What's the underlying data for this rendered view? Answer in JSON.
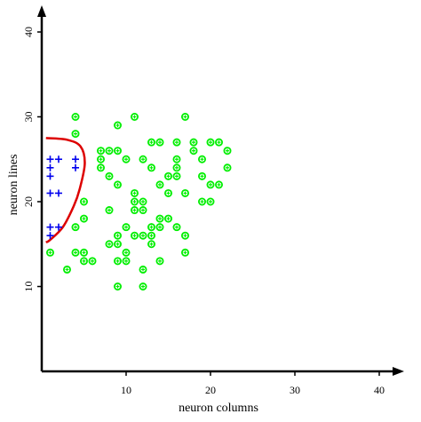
{
  "chart_data": {
    "type": "scatter",
    "title": "",
    "xlabel": "neuron columns",
    "ylabel": "neuron lines",
    "xlim": [
      0,
      42
    ],
    "ylim": [
      0,
      44
    ],
    "xticks": [
      10,
      20,
      30,
      40
    ],
    "yticks": [
      10,
      20,
      30,
      40
    ],
    "grid": false,
    "legend": "none",
    "colors": {
      "class_a": "#00ee00",
      "class_b": "#0000ee",
      "boundary": "#dd0000",
      "axes": "#000000"
    },
    "series": [
      {
        "marker": "circle-plus",
        "color": "#00ee00",
        "points": [
          [
            4,
            30
          ],
          [
            4,
            28
          ],
          [
            9,
            29
          ],
          [
            11,
            30
          ],
          [
            17,
            30
          ],
          [
            7,
            26
          ],
          [
            8,
            26
          ],
          [
            9,
            26
          ],
          [
            12,
            25
          ],
          [
            13,
            27
          ],
          [
            14,
            27
          ],
          [
            16,
            27
          ],
          [
            18,
            27
          ],
          [
            20,
            27
          ],
          [
            21,
            27
          ],
          [
            22,
            26
          ],
          [
            18,
            26
          ],
          [
            7,
            25
          ],
          [
            10,
            25
          ],
          [
            16,
            25
          ],
          [
            19,
            25
          ],
          [
            22,
            24
          ],
          [
            7,
            24
          ],
          [
            13,
            24
          ],
          [
            16,
            24
          ],
          [
            8,
            23
          ],
          [
            15,
            23
          ],
          [
            16,
            23
          ],
          [
            19,
            23
          ],
          [
            14,
            22
          ],
          [
            9,
            22
          ],
          [
            20,
            22
          ],
          [
            21,
            22
          ],
          [
            11,
            21
          ],
          [
            15,
            21
          ],
          [
            17,
            21
          ],
          [
            5,
            20
          ],
          [
            11,
            20
          ],
          [
            12,
            20
          ],
          [
            19,
            20
          ],
          [
            20,
            20
          ],
          [
            8,
            19
          ],
          [
            11,
            19
          ],
          [
            12,
            19
          ],
          [
            5,
            18
          ],
          [
            14,
            18
          ],
          [
            15,
            18
          ],
          [
            4,
            17
          ],
          [
            10,
            17
          ],
          [
            13,
            17
          ],
          [
            14,
            17
          ],
          [
            16,
            17
          ],
          [
            9,
            16
          ],
          [
            11,
            16
          ],
          [
            12,
            16
          ],
          [
            13,
            16
          ],
          [
            17,
            16
          ],
          [
            8,
            15
          ],
          [
            9,
            15
          ],
          [
            13,
            15
          ],
          [
            1,
            14
          ],
          [
            4,
            14
          ],
          [
            5,
            14
          ],
          [
            10,
            14
          ],
          [
            17,
            14
          ],
          [
            5,
            13
          ],
          [
            6,
            13
          ],
          [
            9,
            13
          ],
          [
            10,
            13
          ],
          [
            14,
            13
          ],
          [
            3,
            12
          ],
          [
            12,
            12
          ],
          [
            9,
            10
          ],
          [
            12,
            10
          ]
        ]
      },
      {
        "marker": "plus",
        "color": "#0000ee",
        "points": [
          [
            1,
            25
          ],
          [
            2,
            25
          ],
          [
            4,
            25
          ],
          [
            1,
            24
          ],
          [
            4,
            24
          ],
          [
            1,
            23
          ],
          [
            1,
            21
          ],
          [
            2,
            21
          ],
          [
            1,
            17
          ],
          [
            2,
            17
          ],
          [
            1,
            16
          ]
        ]
      }
    ],
    "boundary": [
      [
        0.5,
        27.5
      ],
      [
        3.0,
        27.3
      ],
      [
        4.6,
        26.5
      ],
      [
        5.1,
        24.5
      ],
      [
        4.5,
        21.5
      ],
      [
        3.8,
        19.5
      ],
      [
        2.5,
        17.0
      ],
      [
        1.0,
        15.5
      ],
      [
        0.5,
        15.2
      ]
    ]
  }
}
